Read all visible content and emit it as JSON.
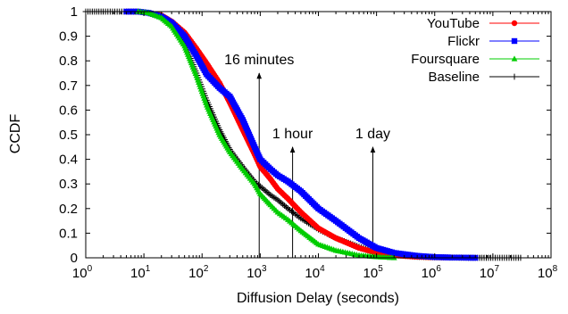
{
  "chart_data": {
    "type": "line",
    "title": "",
    "xlabel": "Diffusion Delay (seconds)",
    "ylabel": "CCDF",
    "x_scale": "log10",
    "xlim": [
      1,
      100000000
    ],
    "ylim": [
      0,
      1
    ],
    "grid": false,
    "legend_position": "top-right",
    "x_ticks": [
      {
        "base": "10",
        "exp": "0",
        "value": 1
      },
      {
        "base": "10",
        "exp": "1",
        "value": 10
      },
      {
        "base": "10",
        "exp": "2",
        "value": 100
      },
      {
        "base": "10",
        "exp": "3",
        "value": 1000
      },
      {
        "base": "10",
        "exp": "4",
        "value": 10000
      },
      {
        "base": "10",
        "exp": "5",
        "value": 100000
      },
      {
        "base": "10",
        "exp": "6",
        "value": 1000000
      },
      {
        "base": "10",
        "exp": "7",
        "value": 10000000
      },
      {
        "base": "10",
        "exp": "8",
        "value": 100000000
      }
    ],
    "y_ticks": [
      {
        "label": "0",
        "value": 0
      },
      {
        "label": "0.1",
        "value": 0.1
      },
      {
        "label": "0.2",
        "value": 0.2
      },
      {
        "label": "0.3",
        "value": 0.3
      },
      {
        "label": "0.4",
        "value": 0.4
      },
      {
        "label": "0.5",
        "value": 0.5
      },
      {
        "label": "0.6",
        "value": 0.6
      },
      {
        "label": "0.7",
        "value": 0.7
      },
      {
        "label": "0.8",
        "value": 0.8
      },
      {
        "label": "0.9",
        "value": 0.9
      },
      {
        "label": "1",
        "value": 1
      }
    ],
    "series": [
      {
        "name": "YouTube",
        "color": "#ff0000",
        "marker": "circle",
        "x": [
          5,
          8,
          12,
          20,
          30,
          50,
          80,
          120,
          200,
          300,
          500,
          800,
          1000,
          1500,
          2000,
          3000,
          5000,
          10000,
          20000,
          50000,
          100000,
          200000,
          500000,
          1000000,
          2000000
        ],
        "y": [
          1.0,
          1.0,
          0.995,
          0.985,
          0.96,
          0.915,
          0.85,
          0.79,
          0.71,
          0.63,
          0.52,
          0.42,
          0.37,
          0.32,
          0.28,
          0.24,
          0.185,
          0.12,
          0.08,
          0.04,
          0.02,
          0.01,
          0.004,
          0.002,
          0.001
        ]
      },
      {
        "name": "Flickr",
        "color": "#0000ff",
        "marker": "square",
        "x": [
          5,
          8,
          12,
          20,
          30,
          50,
          80,
          120,
          200,
          300,
          500,
          800,
          1000,
          1500,
          2000,
          3000,
          5000,
          10000,
          20000,
          50000,
          100000,
          200000,
          500000,
          1000000,
          2000000,
          5000000
        ],
        "y": [
          1.0,
          1.0,
          0.995,
          0.98,
          0.955,
          0.9,
          0.82,
          0.745,
          0.69,
          0.655,
          0.56,
          0.45,
          0.4,
          0.36,
          0.335,
          0.31,
          0.27,
          0.2,
          0.15,
          0.08,
          0.04,
          0.02,
          0.008,
          0.003,
          0.001,
          0.0
        ]
      },
      {
        "name": "Foursquare",
        "color": "#00cc00",
        "marker": "triangle",
        "x": [
          8,
          12,
          20,
          30,
          50,
          80,
          120,
          200,
          300,
          500,
          800,
          1000,
          1500,
          2000,
          3000,
          5000,
          10000,
          20000,
          50000,
          100000,
          200000
        ],
        "y": [
          1.0,
          0.995,
          0.975,
          0.94,
          0.86,
          0.74,
          0.62,
          0.5,
          0.43,
          0.36,
          0.3,
          0.26,
          0.215,
          0.185,
          0.155,
          0.11,
          0.055,
          0.03,
          0.01,
          0.004,
          0.0
        ]
      },
      {
        "name": "Baseline",
        "color": "#000000",
        "marker": "plus",
        "x": [
          1,
          2,
          5,
          8,
          12,
          20,
          30,
          50,
          80,
          120,
          200,
          300,
          500,
          800,
          1000,
          1500,
          2000,
          3000,
          5000,
          10000,
          20000,
          50000,
          100000,
          200000,
          500000,
          1000000,
          2000000,
          5000000,
          10000000,
          30000000
        ],
        "y": [
          1.0,
          1.0,
          1.0,
          1.0,
          0.995,
          0.98,
          0.95,
          0.87,
          0.75,
          0.64,
          0.52,
          0.44,
          0.37,
          0.31,
          0.29,
          0.255,
          0.235,
          0.2,
          0.16,
          0.115,
          0.08,
          0.045,
          0.025,
          0.012,
          0.004,
          0.002,
          0.001,
          0.0,
          0.0,
          0.0
        ]
      }
    ],
    "annotations": [
      {
        "text": "16 minutes",
        "x": 960,
        "y_from": 0,
        "y_to": 0.75
      },
      {
        "text": "1 hour",
        "x": 3600,
        "y_from": 0,
        "y_to": 0.45
      },
      {
        "text": "1 day",
        "x": 86400,
        "y_from": 0,
        "y_to": 0.45
      }
    ]
  }
}
